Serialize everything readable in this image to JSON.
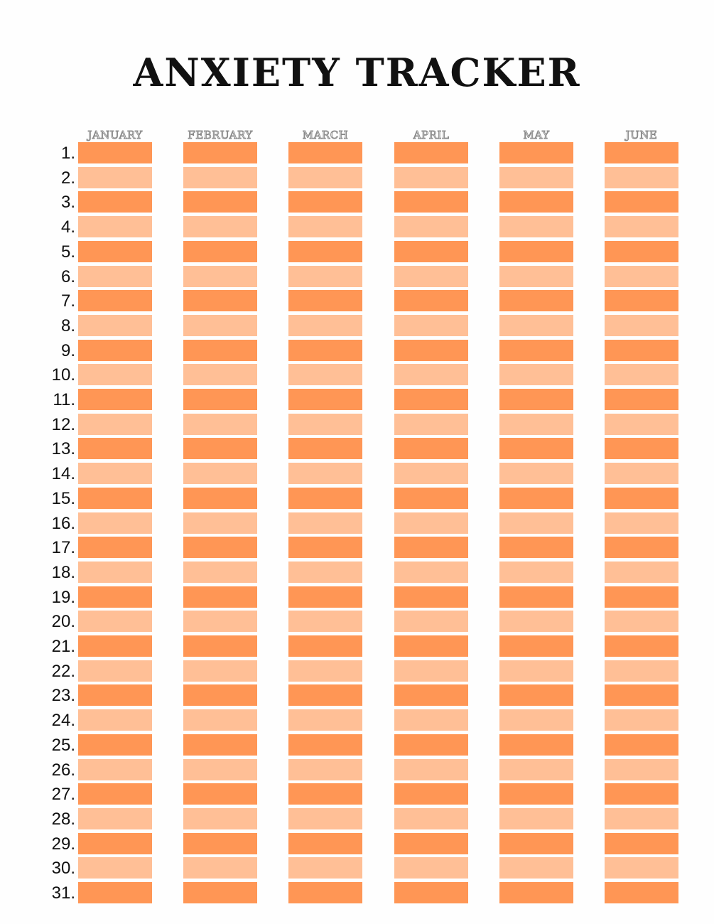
{
  "title": "ANXIETY TRACKER",
  "months": [
    "JANUARY",
    "FEBRUARY",
    "MARCH",
    "APRIL",
    "MAY",
    "JUNE"
  ],
  "days": [
    "1.",
    "2.",
    "3.",
    "4.",
    "5.",
    "6.",
    "7.",
    "8.",
    "9.",
    "10.",
    "11.",
    "12.",
    "13.",
    "14.",
    "15.",
    "16.",
    "17.",
    "18.",
    "19.",
    "20.",
    "21.",
    "22.",
    "23.",
    "24.",
    "25.",
    "26.",
    "27.",
    "28.",
    "29.",
    "30.",
    "31."
  ],
  "colors": {
    "odd_row": "#ff9655",
    "even_row": "#ffbf96"
  }
}
